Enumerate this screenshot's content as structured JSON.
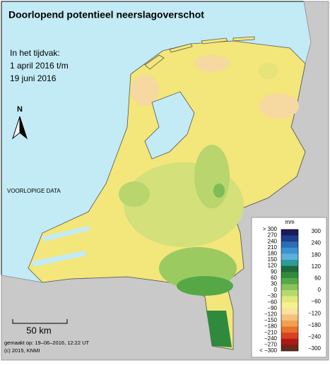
{
  "title": "Doorlopend potentieel neerslagoverschot",
  "period": [
    "In het tijdvak:",
    "1 april 2016 t/m",
    "19 juni 2016"
  ],
  "north": "N",
  "notice": "VOORLOPIGE DATA",
  "scale": "50 km",
  "footer": [
    "gemaakt op: 19–06–2016, 12:22 UT",
    "(c) 2015, KNMI"
  ],
  "legend": {
    "unit": "mm",
    "left_labels": [
      "> 300",
      "270",
      "240",
      "210",
      "180",
      "150",
      "120",
      "90",
      "60",
      "30",
      "0",
      "−30",
      "−60",
      "−90",
      "−120",
      "−150",
      "−180",
      "−210",
      "−240",
      "−270",
      "< −300"
    ],
    "right_labels": [
      "300",
      "240",
      "180",
      "120",
      "60",
      "0",
      "−60",
      "−120",
      "−180",
      "−240",
      "−300"
    ],
    "colors": [
      "#1b1a5c",
      "#203d8e",
      "#2a6db3",
      "#3e92cf",
      "#5cb2dc",
      "#2c9c9a",
      "#1d6a39",
      "#2f8a3e",
      "#56a847",
      "#88c35b",
      "#b7d96b",
      "#e0e97c",
      "#f7f18c",
      "#fbe1a2",
      "#f5c17b",
      "#f0a051",
      "#e8712b",
      "#d84121",
      "#b01818",
      "#6a2a1b"
    ]
  }
}
